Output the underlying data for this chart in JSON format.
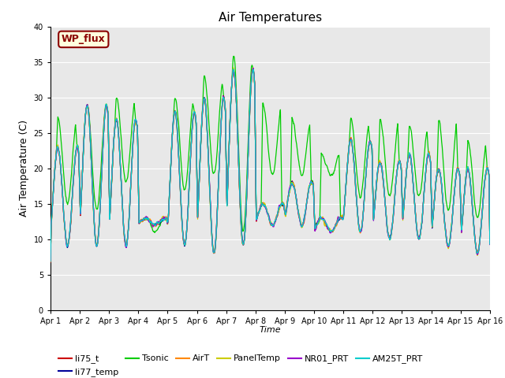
{
  "title": "Air Temperatures",
  "xlabel": "Time",
  "ylabel": "Air Temperature (C)",
  "ylim": [
    0,
    40
  ],
  "yticks": [
    0,
    5,
    10,
    15,
    20,
    25,
    30,
    35,
    40
  ],
  "xlim_days": 15,
  "x_tick_labels": [
    "Apr 1",
    "Apr 2",
    "Apr 3",
    "Apr 4",
    "Apr 5",
    "Apr 6",
    "Apr 7",
    "Apr 8",
    "Apr 9",
    "Apr 10",
    "Apr 11",
    "Apr 12",
    "Apr 13",
    "Apr 14",
    "Apr 15",
    "Apr 16"
  ],
  "axes_facecolor": "#e8e8e8",
  "figure_facecolor": "#ffffff",
  "annotation_text": "WP_flux",
  "annotation_color": "#8b0000",
  "annotation_bg": "#ffffdd",
  "annotation_border": "#8b0000",
  "series_colors": {
    "li75_t": "#cc0000",
    "li77_temp": "#000099",
    "Tsonic": "#00cc00",
    "AirT": "#ff8800",
    "PanelTemp": "#cccc00",
    "NR01_PRT": "#9900cc",
    "AM25T_PRT": "#00cccc"
  },
  "cluster_day_peaks": [
    23,
    29,
    27,
    13,
    28,
    30,
    34,
    15,
    18,
    13,
    24,
    21,
    22,
    20,
    20
  ],
  "cluster_day_troughs": [
    9,
    9,
    9,
    12,
    9,
    8,
    9,
    12,
    12,
    11,
    11,
    10,
    10,
    9,
    8
  ],
  "tsonic_day_peaks": [
    27,
    29,
    30,
    13,
    30,
    33,
    36,
    29,
    27,
    22,
    27,
    27,
    26,
    27,
    24
  ],
  "tsonic_day_troughs": [
    15,
    14,
    18,
    11,
    17,
    19,
    11,
    19,
    19,
    19,
    16,
    16,
    16,
    14,
    13
  ]
}
